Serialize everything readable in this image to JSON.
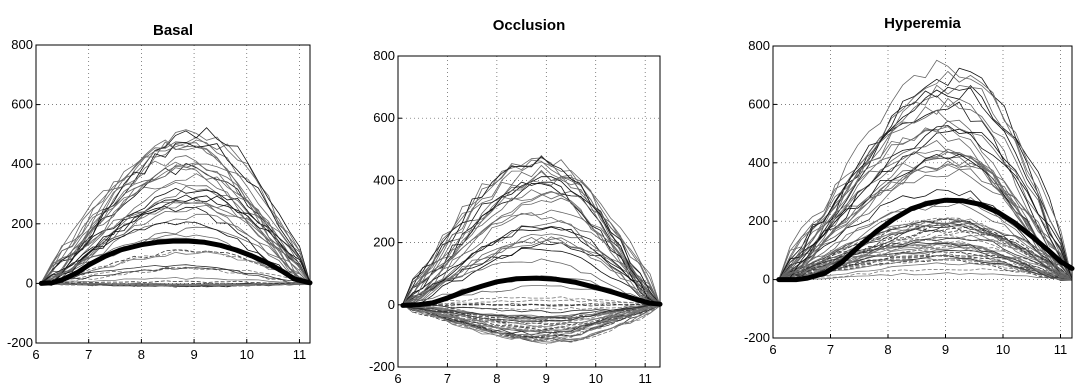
{
  "chart_data": [
    {
      "type": "line",
      "title": "Basal",
      "xlabel": "",
      "ylabel": "",
      "xlim": [
        6,
        11.2
      ],
      "ylim": [
        -200,
        800
      ],
      "xticks": [
        6,
        7,
        8,
        9,
        10,
        11
      ],
      "yticks": [
        -200,
        0,
        200,
        400,
        600,
        800
      ],
      "grid": true,
      "mean_series": {
        "x": [
          6.1,
          6.3,
          6.5,
          6.8,
          7.0,
          7.3,
          7.6,
          8.0,
          8.3,
          8.6,
          8.9,
          9.2,
          9.5,
          9.8,
          10.1,
          10.4,
          10.7,
          10.9,
          11.2
        ],
        "y": [
          0,
          2,
          12,
          38,
          62,
          90,
          112,
          130,
          138,
          142,
          142,
          138,
          128,
          112,
          92,
          68,
          38,
          15,
          2
        ]
      },
      "envelope": {
        "x": [
          6.1,
          11.2
        ],
        "peak_x": 8.9,
        "upper_peak": 520,
        "lower_min": -10
      }
    },
    {
      "type": "line",
      "title": "Occlusion",
      "xlabel": "",
      "ylabel": "",
      "xlim": [
        6,
        11.3
      ],
      "ylim": [
        -200,
        800
      ],
      "xticks": [
        6,
        7,
        8,
        9,
        10,
        11
      ],
      "yticks": [
        -200,
        0,
        200,
        400,
        600,
        800
      ],
      "grid": true,
      "mean_series": {
        "x": [
          6.1,
          6.4,
          6.7,
          7.0,
          7.3,
          7.7,
          8.0,
          8.4,
          8.8,
          9.2,
          9.6,
          10.0,
          10.4,
          10.8,
          11.1,
          11.3
        ],
        "y": [
          -2,
          0,
          6,
          22,
          40,
          60,
          74,
          84,
          86,
          82,
          72,
          56,
          38,
          18,
          5,
          2
        ]
      },
      "envelope": {
        "x": [
          6.1,
          11.3
        ],
        "peak_x": 9.0,
        "upper_peak": 470,
        "lower_min": -120
      }
    },
    {
      "type": "line",
      "title": "Hyperemia",
      "xlabel": "",
      "ylabel": "",
      "xlim": [
        6,
        11.2
      ],
      "ylim": [
        -200,
        800
      ],
      "xticks": [
        6,
        7,
        8,
        9,
        10,
        11
      ],
      "yticks": [
        -200,
        0,
        200,
        400,
        600,
        800
      ],
      "grid": true,
      "mean_series": {
        "x": [
          6.1,
          6.4,
          6.6,
          6.9,
          7.2,
          7.5,
          7.8,
          8.1,
          8.4,
          8.7,
          9.0,
          9.3,
          9.6,
          9.9,
          10.2,
          10.5,
          10.8,
          11.0,
          11.2
        ],
        "y": [
          0,
          0,
          5,
          22,
          60,
          115,
          165,
          208,
          242,
          262,
          272,
          270,
          258,
          232,
          195,
          148,
          98,
          62,
          38
        ]
      },
      "envelope": {
        "x": [
          6.1,
          11.2
        ],
        "peak_x": 9.1,
        "upper_peak": 760,
        "lower_min": 0
      }
    }
  ]
}
